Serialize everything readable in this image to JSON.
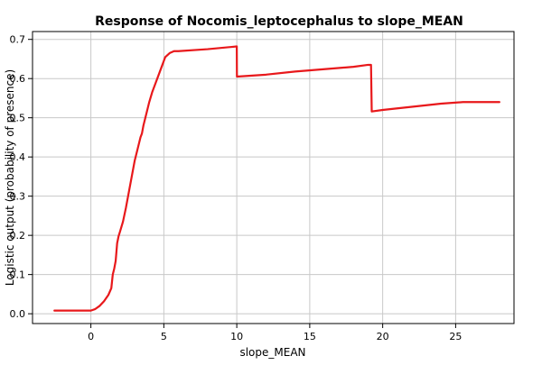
{
  "chart_data": {
    "type": "line",
    "title": "Response of Nocomis_leptocephalus to slope_MEAN",
    "xlabel": "slope_MEAN",
    "ylabel": "Logistic output (probability of presence)",
    "xlim": [
      -4,
      29
    ],
    "ylim": [
      -0.025,
      0.72
    ],
    "xticks": [
      0,
      5,
      10,
      15,
      20,
      25
    ],
    "yticks": [
      0.0,
      0.1,
      0.2,
      0.3,
      0.4,
      0.5,
      0.6,
      0.7
    ],
    "grid": true,
    "series": [
      {
        "color": "#e8181b",
        "x": [
          -2.5,
          0.0,
          0.3,
          0.6,
          0.9,
          1.2,
          1.4,
          1.5,
          1.6,
          1.7,
          1.8,
          1.9,
          2.0,
          2.2,
          2.4,
          2.6,
          2.8,
          3.0,
          3.2,
          3.4,
          3.5,
          3.6,
          3.8,
          4.0,
          4.2,
          4.5,
          4.8,
          5.1,
          5.4,
          5.7,
          6.0,
          8.0,
          10.0,
          10.01,
          12.0,
          14.0,
          16.0,
          18.0,
          19.0,
          19.2,
          19.25,
          20.0,
          22.0,
          24.0,
          25.5,
          28.0
        ],
        "y": [
          0.008,
          0.008,
          0.012,
          0.02,
          0.032,
          0.048,
          0.065,
          0.1,
          0.115,
          0.135,
          0.18,
          0.198,
          0.21,
          0.235,
          0.27,
          0.31,
          0.35,
          0.39,
          0.42,
          0.45,
          0.46,
          0.48,
          0.51,
          0.54,
          0.565,
          0.595,
          0.625,
          0.655,
          0.665,
          0.67,
          0.67,
          0.675,
          0.682,
          0.605,
          0.61,
          0.618,
          0.624,
          0.63,
          0.635,
          0.635,
          0.516,
          0.52,
          0.528,
          0.536,
          0.54,
          0.54
        ]
      }
    ]
  }
}
